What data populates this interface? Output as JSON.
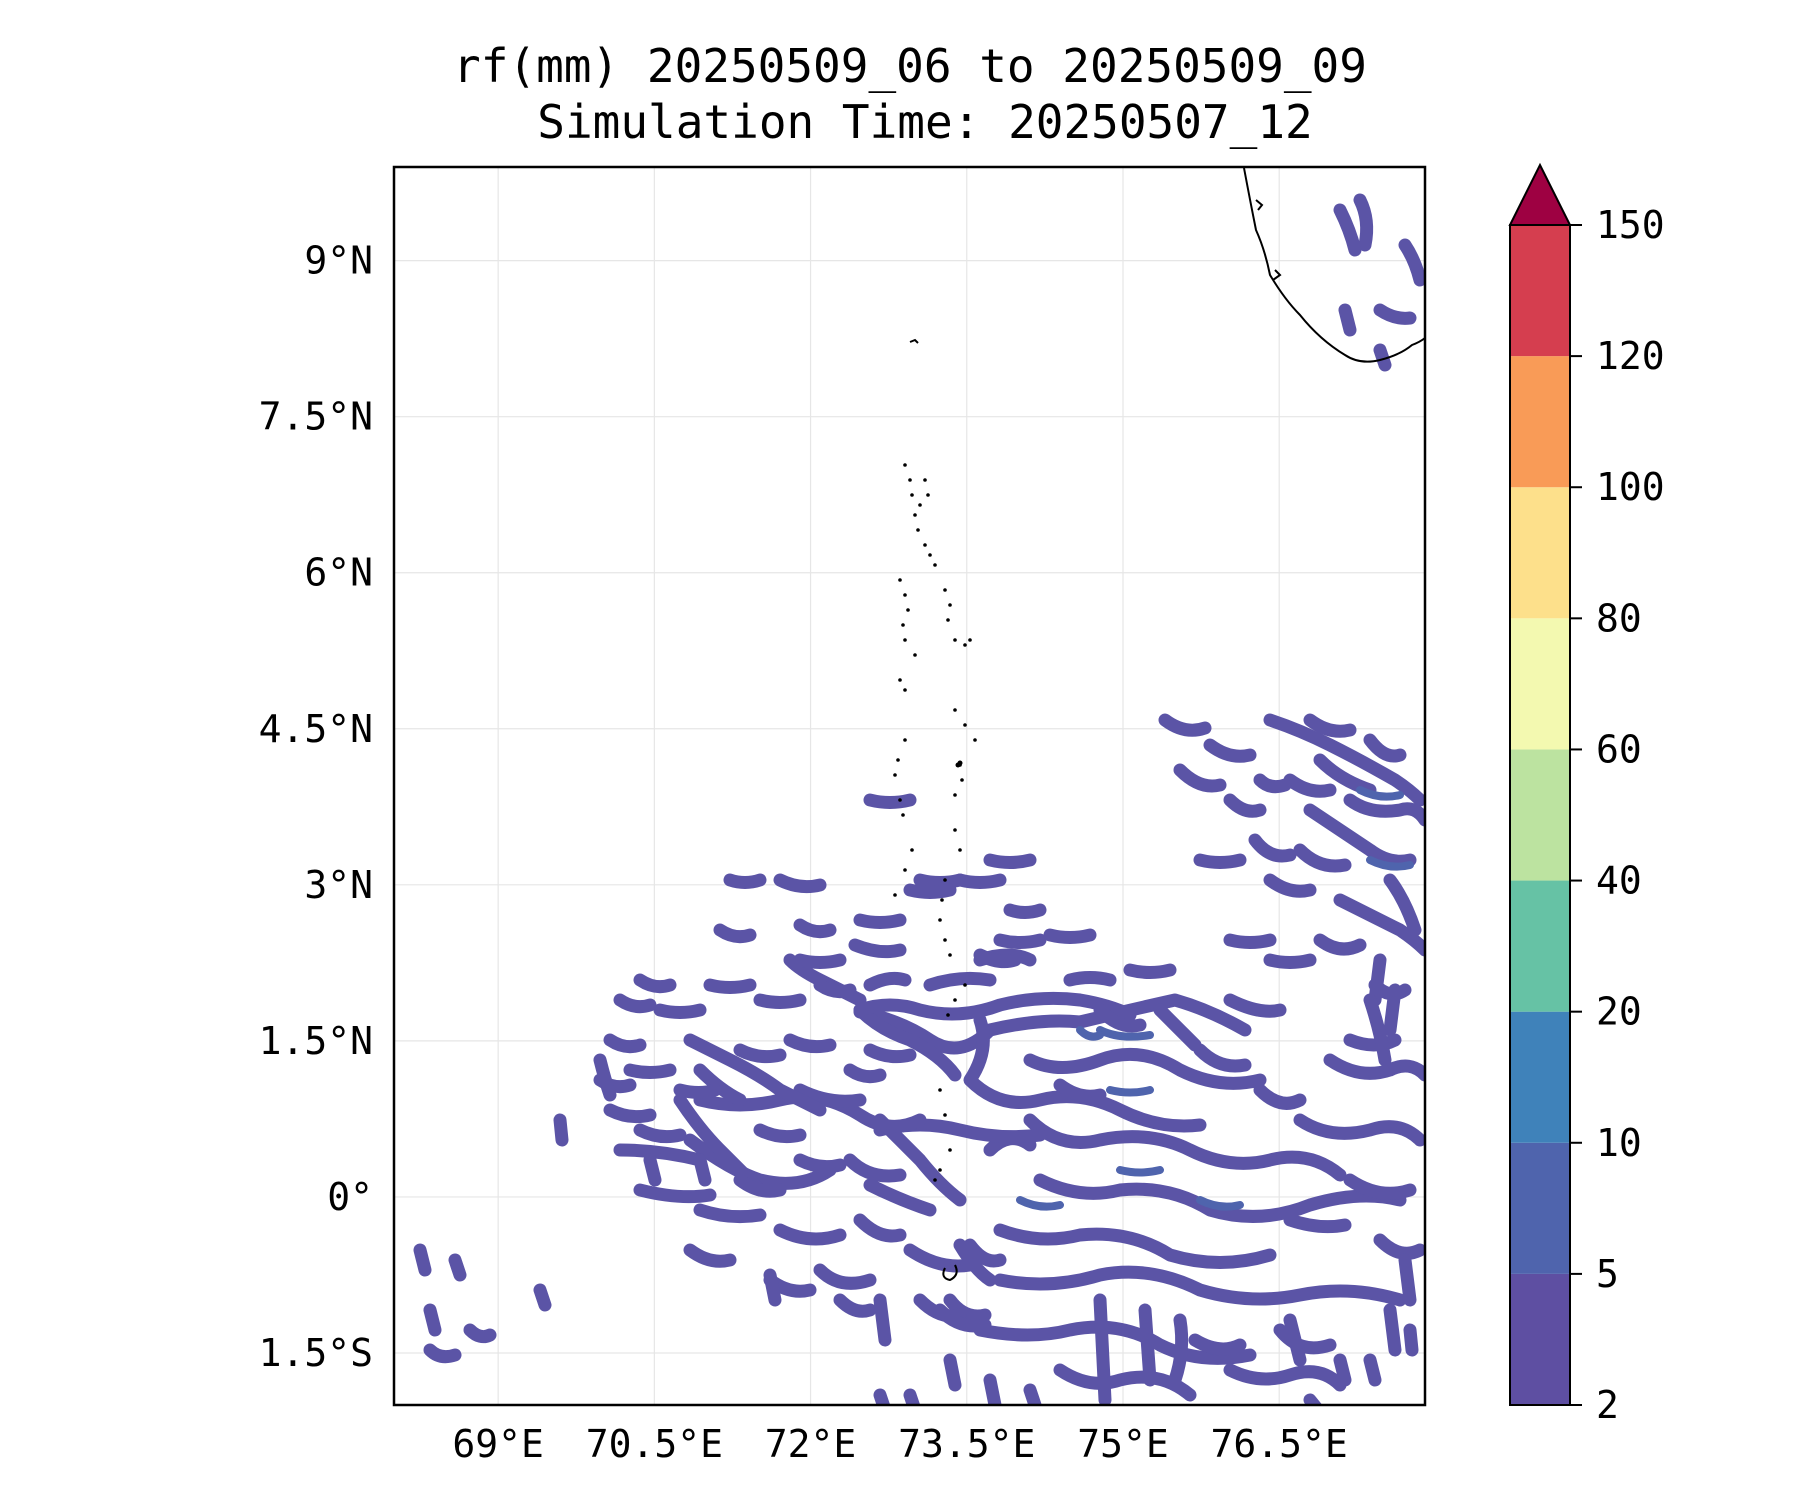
{
  "title": {
    "line1": "rf(mm) 20250509_06 to 20250509_09",
    "line2": "Simulation Time: 20250507_12"
  },
  "map": {
    "extent": {
      "lon_min": 68.0,
      "lon_max": 77.9,
      "lat_min": -2.0,
      "lat_max": 9.9
    },
    "lon_ticks": [
      {
        "value": 69.0,
        "label": "69°E"
      },
      {
        "value": 70.5,
        "label": "70.5°E"
      },
      {
        "value": 72.0,
        "label": "72°E"
      },
      {
        "value": 73.5,
        "label": "73.5°E"
      },
      {
        "value": 75.0,
        "label": "75°E"
      },
      {
        "value": 76.5,
        "label": "76.5°E"
      }
    ],
    "lat_ticks": [
      {
        "value": 9.0,
        "label": "9°N"
      },
      {
        "value": 7.5,
        "label": "7.5°N"
      },
      {
        "value": 6.0,
        "label": "6°N"
      },
      {
        "value": 4.5,
        "label": "4.5°N"
      },
      {
        "value": 3.0,
        "label": "3°N"
      },
      {
        "value": 1.5,
        "label": "1.5°N"
      },
      {
        "value": 0.0,
        "label": "0°"
      },
      {
        "value": -1.5,
        "label": "1.5°S"
      }
    ],
    "gridlines": true,
    "coastline_color": "#000000"
  },
  "colorbar": {
    "orientation": "vertical",
    "placement": "right",
    "extend": "max",
    "extend_color": "#9e0142",
    "levels": [
      {
        "label": "2",
        "color": "#5e4fa2"
      },
      {
        "label": "5",
        "color": "#4f64ad"
      },
      {
        "label": "10",
        "color": "#3f82ba"
      },
      {
        "label": "20",
        "color": "#66c2a5"
      },
      {
        "label": "40",
        "color": "#bce3a0"
      },
      {
        "label": "60",
        "color": "#f3f9b0"
      },
      {
        "label": "80",
        "color": "#fde08b"
      },
      {
        "label": "100",
        "color": "#f99b57"
      },
      {
        "label": "120",
        "color": "#d53e4f"
      },
      {
        "label": "150",
        "color": null
      }
    ]
  }
}
